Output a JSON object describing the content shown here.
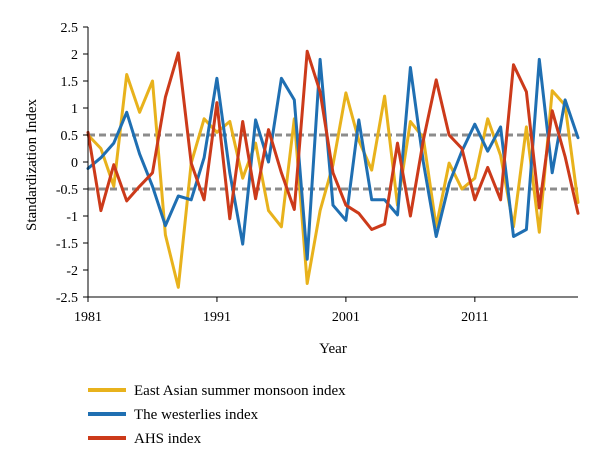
{
  "chart_data": {
    "type": "line",
    "xlabel": "Year",
    "ylabel": "Standardization Index",
    "xlim": [
      1981,
      2019
    ],
    "ylim": [
      -2.5,
      2.5
    ],
    "x_ticks": [
      1981,
      1991,
      2001,
      2011
    ],
    "x_tick_labels": [
      "1981",
      "1991",
      "2001",
      "2011"
    ],
    "y_ticks": [
      2.5,
      2,
      1.5,
      1,
      0.5,
      0,
      -0.5,
      -1,
      -1.5,
      -2,
      -2.5
    ],
    "y_tick_labels": [
      "2.5",
      "2",
      "1.5",
      "1",
      "0.5",
      "0",
      "-0.5",
      "-1",
      "-1.5",
      "-2",
      "-2.5"
    ],
    "grid": false,
    "legend_position": "bottom",
    "x": [
      1981,
      1982,
      1983,
      1984,
      1985,
      1986,
      1987,
      1988,
      1989,
      1990,
      1991,
      1992,
      1993,
      1994,
      1995,
      1996,
      1997,
      1998,
      1999,
      2000,
      2001,
      2002,
      2003,
      2004,
      2005,
      2006,
      2007,
      2008,
      2009,
      2010,
      2011,
      2012,
      2013,
      2014,
      2015,
      2016,
      2017,
      2018,
      2019
    ],
    "reference_lines": [
      {
        "y": 0.5,
        "color": "#8c8c8c",
        "style": "dashed"
      },
      {
        "y": -0.5,
        "color": "#8c8c8c",
        "style": "dashed"
      }
    ],
    "series": [
      {
        "name": "East Asian summer monsoon index",
        "color": "#e8b21c",
        "values": [
          0.5,
          0.25,
          -0.45,
          1.62,
          0.92,
          1.5,
          -1.35,
          -2.32,
          -0.02,
          0.8,
          0.55,
          0.75,
          -0.3,
          0.35,
          -0.9,
          -1.2,
          0.8,
          -2.25,
          -0.9,
          -0.05,
          1.28,
          0.4,
          -0.15,
          1.22,
          -0.8,
          0.75,
          0.45,
          -1.2,
          -0.02,
          -0.5,
          -0.3,
          0.8,
          0.12,
          -1.2,
          0.65,
          -1.3,
          1.32,
          1.05,
          -0.75
        ]
      },
      {
        "name": "The westerlies index",
        "color": "#1f6fb2",
        "values": [
          -0.12,
          0.08,
          0.35,
          0.92,
          0.15,
          -0.45,
          -1.18,
          -0.63,
          -0.7,
          0.08,
          1.55,
          -0.2,
          -1.52,
          0.78,
          0.0,
          1.55,
          1.15,
          -1.8,
          1.9,
          -0.8,
          -1.08,
          0.78,
          -0.7,
          -0.7,
          -0.98,
          1.75,
          0.0,
          -1.38,
          -0.4,
          0.2,
          0.7,
          0.2,
          0.65,
          -1.38,
          -1.25,
          1.9,
          -0.2,
          1.15,
          0.45
        ]
      },
      {
        "name": "AHS index",
        "color": "#cc3a1a",
        "values": [
          0.55,
          -0.9,
          -0.05,
          -0.72,
          -0.45,
          -0.2,
          1.2,
          2.02,
          -0.02,
          -0.7,
          1.1,
          -1.05,
          0.75,
          -0.68,
          0.6,
          -0.2,
          -0.88,
          2.05,
          1.3,
          -0.2,
          -0.8,
          -0.95,
          -1.25,
          -1.15,
          0.35,
          -1.0,
          0.4,
          1.52,
          0.5,
          0.25,
          -0.7,
          -0.1,
          -0.7,
          1.8,
          1.3,
          -0.85,
          0.95,
          0.1,
          -0.95
        ]
      }
    ]
  }
}
